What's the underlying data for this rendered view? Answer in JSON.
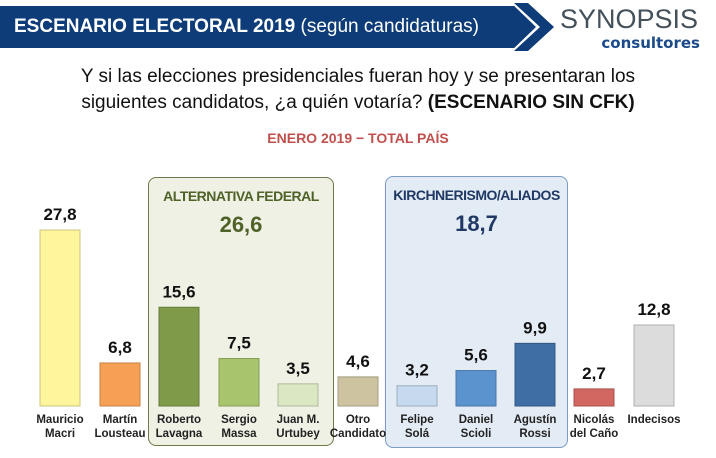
{
  "header": {
    "title_bold": "ESCENARIO ELECTORAL 2019",
    "title_sub": "(según candidaturas)",
    "logo_main": "SYNOPSIS",
    "logo_sub": "consultores"
  },
  "question": {
    "line1": "Y si las elecciones presidenciales fueran hoy y se presentaran los",
    "line2": "siguientes candidatos, ¿a quién votaría?",
    "line2_bold": "(ESCENARIO SIN CFK)"
  },
  "date_label": "ENERO 2019 − TOTAL PAÍS",
  "groups": [
    {
      "name": "ALTERNATIVA FEDERAL",
      "total": "26,6"
    },
    {
      "name": "KIRCHNERISMO/ALIADOS",
      "total": "18,7"
    }
  ],
  "chart_data": {
    "type": "bar",
    "title": "ESCENARIO ELECTORAL 2019 (según candidaturas)",
    "subtitle": "ENERO 2019 − TOTAL PAÍS",
    "xlabel": "",
    "ylabel": "",
    "ylim": [
      0,
      30
    ],
    "grid": false,
    "categories": [
      [
        "Mauricio",
        "Macri"
      ],
      [
        "Martín",
        "Lousteau"
      ],
      [
        "Roberto",
        "Lavagna"
      ],
      [
        "Sergio",
        "Massa"
      ],
      [
        "Juan M.",
        "Urtubey"
      ],
      [
        "Otro",
        "Candidato"
      ],
      [
        "Felipe",
        "Solá"
      ],
      [
        "Daniel",
        "Scioli"
      ],
      [
        "Agustín",
        "Rossi"
      ],
      [
        "Nicolás",
        "del Caño"
      ],
      [
        "Indecisos"
      ]
    ],
    "values": [
      27.8,
      6.8,
      15.6,
      7.5,
      3.5,
      4.6,
      3.2,
      5.6,
      9.9,
      2.7,
      12.8
    ],
    "value_labels": [
      "27,8",
      "6,8",
      "15,6",
      "7,5",
      "3,5",
      "4,6",
      "3,2",
      "5,6",
      "9,9",
      "2,7",
      "12,8"
    ],
    "colors": [
      "#fff59d",
      "#f6a055",
      "#7f9a48",
      "#a8c46c",
      "#dbe7c2",
      "#cdc3a0",
      "#c6d9ee",
      "#5b93cf",
      "#3f6ea5",
      "#d26660",
      "#dcdcdc"
    ],
    "group_annotations": [
      {
        "name": "ALTERNATIVA FEDERAL",
        "total": 26.6,
        "members": [
          "Roberto Lavagna",
          "Sergio Massa",
          "Juan M. Urtubey"
        ]
      },
      {
        "name": "KIRCHNERISMO/ALIADOS",
        "total": 18.7,
        "members": [
          "Felipe Solá",
          "Daniel Scioli",
          "Agustín Rossi"
        ]
      }
    ]
  }
}
